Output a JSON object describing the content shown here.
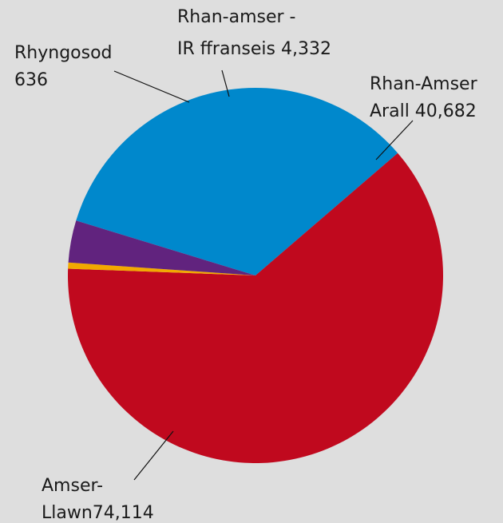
{
  "chart_data": {
    "type": "pie",
    "slices": [
      {
        "label_lines": [
          "Rhan-Amser",
          "Arall 40,682"
        ],
        "value": 40682,
        "color": "#0088cc"
      },
      {
        "label_lines": [
          "Amser-",
          "Llawn74,114"
        ],
        "value": 74114,
        "color": "#c0091e"
      },
      {
        "label_lines": [
          "Rhyngosod",
          "636"
        ],
        "value": 636,
        "color": "#f2a900"
      },
      {
        "label_lines": [
          "Rhan-amser -",
          "IR ffranseis 4,332"
        ],
        "value": 4332,
        "color": "#61237e"
      }
    ],
    "background": "#dedede"
  }
}
